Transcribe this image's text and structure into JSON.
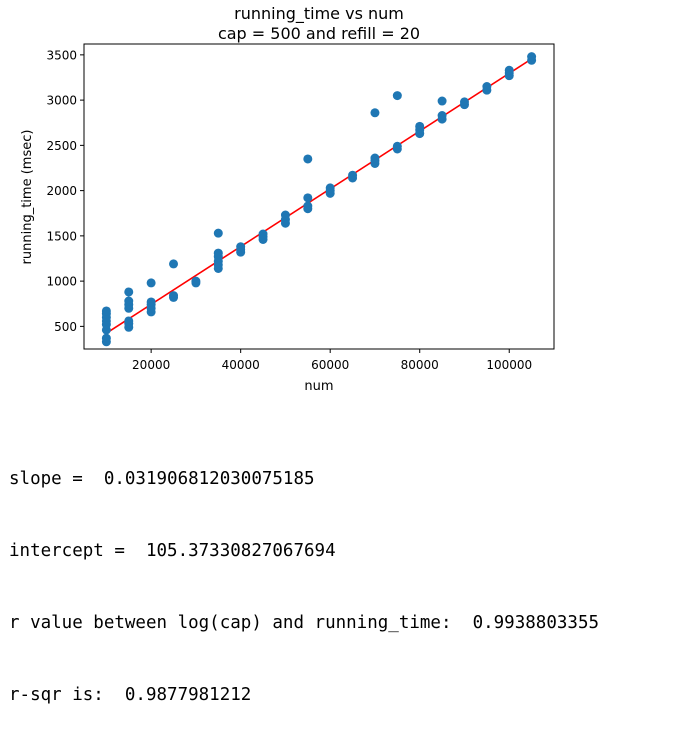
{
  "chart_data": {
    "type": "scatter",
    "title": "running_time vs num",
    "subtitle": "cap = 500 and refill = 20",
    "xlabel": "num",
    "ylabel": "running_time (msec)",
    "xlim": [
      5000,
      110000
    ],
    "ylim": [
      250,
      3620
    ],
    "xticks": [
      20000,
      40000,
      60000,
      80000,
      100000
    ],
    "xtick_labels": [
      "20000",
      "40000",
      "60000",
      "80000",
      "100000"
    ],
    "yticks": [
      500,
      1000,
      1500,
      2000,
      2500,
      3000,
      3500
    ],
    "ytick_labels": [
      "500",
      "1000",
      "1500",
      "2000",
      "2500",
      "3000",
      "3500"
    ],
    "grid": false,
    "colors": {
      "points": "#1f77b4",
      "fit_line": "#ff0000",
      "axes": "#000000"
    },
    "series": [
      {
        "points": [
          [
            10000,
            330
          ],
          [
            10000,
            370
          ],
          [
            10000,
            460
          ],
          [
            10000,
            520
          ],
          [
            10000,
            560
          ],
          [
            10000,
            600
          ],
          [
            10000,
            640
          ],
          [
            10000,
            670
          ],
          [
            15000,
            490
          ],
          [
            15000,
            530
          ],
          [
            15000,
            560
          ],
          [
            15000,
            700
          ],
          [
            15000,
            740
          ],
          [
            15000,
            780
          ],
          [
            15000,
            880
          ],
          [
            20000,
            660
          ],
          [
            20000,
            700
          ],
          [
            20000,
            740
          ],
          [
            20000,
            770
          ],
          [
            20000,
            980
          ],
          [
            25000,
            820
          ],
          [
            25000,
            840
          ],
          [
            25000,
            1190
          ],
          [
            30000,
            980
          ],
          [
            30000,
            1000
          ],
          [
            35000,
            1140
          ],
          [
            35000,
            1180
          ],
          [
            35000,
            1220
          ],
          [
            35000,
            1270
          ],
          [
            35000,
            1310
          ],
          [
            35000,
            1530
          ],
          [
            40000,
            1320
          ],
          [
            40000,
            1350
          ],
          [
            40000,
            1380
          ],
          [
            45000,
            1460
          ],
          [
            45000,
            1490
          ],
          [
            45000,
            1520
          ],
          [
            50000,
            1640
          ],
          [
            50000,
            1680
          ],
          [
            50000,
            1730
          ],
          [
            55000,
            1800
          ],
          [
            55000,
            1830
          ],
          [
            55000,
            1920
          ],
          [
            55000,
            2350
          ],
          [
            60000,
            1970
          ],
          [
            60000,
            2000
          ],
          [
            60000,
            2030
          ],
          [
            65000,
            2140
          ],
          [
            65000,
            2170
          ],
          [
            70000,
            2300
          ],
          [
            70000,
            2330
          ],
          [
            70000,
            2360
          ],
          [
            70000,
            2860
          ],
          [
            75000,
            2460
          ],
          [
            75000,
            2490
          ],
          [
            75000,
            3050
          ],
          [
            80000,
            2630
          ],
          [
            80000,
            2670
          ],
          [
            80000,
            2710
          ],
          [
            85000,
            2790
          ],
          [
            85000,
            2830
          ],
          [
            85000,
            2990
          ],
          [
            90000,
            2950
          ],
          [
            90000,
            2980
          ],
          [
            95000,
            3110
          ],
          [
            95000,
            3150
          ],
          [
            100000,
            3270
          ],
          [
            100000,
            3300
          ],
          [
            100000,
            3330
          ],
          [
            105000,
            3440
          ],
          [
            105000,
            3480
          ]
        ]
      }
    ],
    "fit_line": {
      "slope": 0.031906812030075185,
      "intercept": 105.37330827067694,
      "x_range": [
        10000,
        105000
      ]
    }
  },
  "output": {
    "lines": [
      "slope =  0.031906812030075185",
      "intercept =  105.37330827067694",
      "r value between log(cap) and running_time:  0.9938803355",
      "r-sqr is:  0.9877981212"
    ]
  }
}
